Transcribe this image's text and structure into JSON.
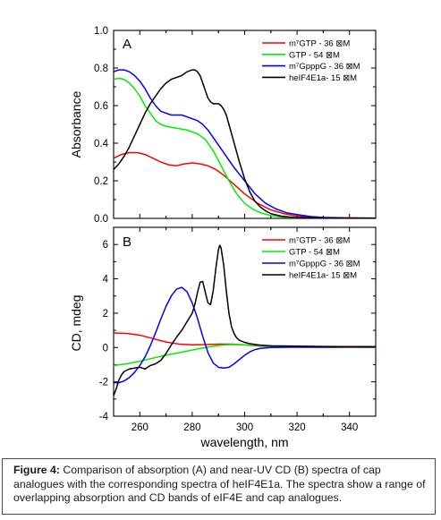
{
  "chart_data": [
    {
      "type": "line",
      "panel_label": "A",
      "ylabel": "Absorbance",
      "xlim": [
        250,
        350
      ],
      "ylim": [
        0.0,
        1.0
      ],
      "yticks": [
        0.0,
        0.2,
        0.4,
        0.6,
        0.8,
        1.0
      ],
      "ytick_labels": [
        "0.0",
        "0.2",
        "0.4",
        "0.6",
        "0.8",
        "1.0"
      ],
      "xticks": [
        260,
        280,
        300,
        320,
        340
      ],
      "legend_position": "top-right",
      "series": [
        {
          "name": "m⁷GTP - 36 ⊠M",
          "color": "#ff0000",
          "x": [
            250,
            253,
            256,
            259,
            262,
            265,
            268,
            271,
            274,
            277,
            280,
            283,
            286,
            289,
            292,
            296,
            300,
            305,
            310,
            315,
            320,
            330,
            340,
            350
          ],
          "y": [
            0.32,
            0.34,
            0.35,
            0.35,
            0.34,
            0.32,
            0.3,
            0.285,
            0.28,
            0.29,
            0.295,
            0.29,
            0.28,
            0.26,
            0.23,
            0.18,
            0.13,
            0.08,
            0.045,
            0.025,
            0.012,
            0.005,
            0.003,
            0.002
          ]
        },
        {
          "name": "GTP - 54 ⊠M",
          "color": "#00ee00",
          "x": [
            250,
            252,
            254,
            256,
            258,
            260,
            262,
            264,
            266,
            268,
            270,
            274,
            278,
            282,
            285,
            288,
            291,
            294,
            297,
            300,
            303,
            306,
            310,
            315,
            320,
            330,
            340,
            350
          ],
          "y": [
            0.74,
            0.745,
            0.74,
            0.72,
            0.69,
            0.65,
            0.6,
            0.56,
            0.52,
            0.5,
            0.49,
            0.48,
            0.47,
            0.45,
            0.42,
            0.36,
            0.28,
            0.2,
            0.13,
            0.08,
            0.05,
            0.03,
            0.015,
            0.006,
            0.003,
            0.001,
            0.001,
            0.0
          ]
        },
        {
          "name": "m⁷GpppG - 36 ⊠M",
          "color": "#0000ff",
          "x": [
            250,
            252,
            254,
            256,
            258,
            260,
            262,
            264,
            266,
            268,
            270,
            272,
            274,
            276,
            278,
            280,
            282,
            284,
            286,
            288,
            290,
            293,
            296,
            300,
            304,
            308,
            312,
            316,
            320,
            325,
            330,
            340,
            350
          ],
          "y": [
            0.78,
            0.79,
            0.79,
            0.78,
            0.76,
            0.73,
            0.69,
            0.64,
            0.6,
            0.57,
            0.56,
            0.55,
            0.55,
            0.55,
            0.54,
            0.53,
            0.52,
            0.5,
            0.47,
            0.43,
            0.39,
            0.33,
            0.27,
            0.2,
            0.13,
            0.08,
            0.05,
            0.03,
            0.02,
            0.01,
            0.005,
            0.002,
            0.001
          ]
        },
        {
          "name": "heIF4E1a- 15 ⊠M",
          "color": "#000000",
          "x": [
            250,
            252,
            254,
            256,
            258,
            260,
            262,
            264,
            266,
            268,
            270,
            272,
            274,
            276,
            278,
            280,
            281,
            282,
            283,
            284,
            285,
            286,
            287,
            288,
            289,
            290,
            291,
            292,
            293,
            294,
            296,
            298,
            300,
            302,
            304,
            306,
            308,
            310,
            314,
            318,
            320,
            330,
            340,
            350
          ],
          "y": [
            0.26,
            0.29,
            0.33,
            0.38,
            0.44,
            0.5,
            0.56,
            0.61,
            0.65,
            0.69,
            0.72,
            0.74,
            0.75,
            0.76,
            0.78,
            0.79,
            0.79,
            0.78,
            0.76,
            0.72,
            0.68,
            0.64,
            0.62,
            0.61,
            0.61,
            0.61,
            0.6,
            0.58,
            0.55,
            0.5,
            0.4,
            0.3,
            0.21,
            0.14,
            0.09,
            0.06,
            0.04,
            0.025,
            0.012,
            0.006,
            0.004,
            0.002,
            0.001,
            0.0
          ]
        }
      ]
    },
    {
      "type": "line",
      "panel_label": "B",
      "ylabel": "CD, mdeg",
      "xlabel": "wavelength, nm",
      "xlim": [
        250,
        350
      ],
      "ylim": [
        -4,
        7
      ],
      "yticks": [
        -4,
        -2,
        0,
        2,
        4,
        6
      ],
      "ytick_labels": [
        "-4",
        "-2",
        "0",
        "2",
        "4",
        "6"
      ],
      "xticks": [
        260,
        280,
        300,
        320,
        340
      ],
      "xtick_labels": [
        "260",
        "280",
        "300",
        "320",
        "340"
      ],
      "legend_position": "top-right",
      "series": [
        {
          "name": "m⁷GTP - 36 ⊠M",
          "color": "#ff0000",
          "x": [
            250,
            255,
            260,
            265,
            270,
            275,
            280,
            285,
            290,
            295,
            300,
            305,
            310,
            320,
            330,
            340,
            350
          ],
          "y": [
            0.85,
            0.82,
            0.72,
            0.52,
            0.32,
            0.2,
            0.16,
            0.17,
            0.2,
            0.2,
            0.15,
            0.09,
            0.05,
            0.02,
            0.01,
            0.01,
            0.0
          ]
        },
        {
          "name": "GTP - 54 ⊠M",
          "color": "#00ee00",
          "x": [
            250,
            255,
            260,
            265,
            270,
            275,
            280,
            285,
            290,
            295,
            300,
            305,
            310,
            320,
            330,
            340,
            350
          ],
          "y": [
            -1.05,
            -0.95,
            -0.8,
            -0.62,
            -0.45,
            -0.3,
            -0.15,
            0.0,
            0.12,
            0.18,
            0.16,
            0.11,
            0.07,
            0.04,
            0.03,
            0.03,
            0.03
          ]
        },
        {
          "name": "m⁷GpppG - 36 ⊠M",
          "color": "#0000ff",
          "x": [
            250,
            252,
            254,
            256,
            258,
            260,
            262,
            264,
            266,
            268,
            270,
            272,
            274,
            276,
            278,
            280,
            282,
            284,
            286,
            288,
            290,
            292,
            294,
            296,
            298,
            300,
            302,
            304,
            306,
            310,
            320,
            330,
            340,
            350
          ],
          "y": [
            -2.05,
            -2.05,
            -1.95,
            -1.75,
            -1.45,
            -1.05,
            -0.55,
            0.1,
            0.85,
            1.65,
            2.4,
            3.0,
            3.4,
            3.5,
            3.25,
            2.6,
            1.7,
            0.65,
            -0.3,
            -0.9,
            -1.15,
            -1.2,
            -1.15,
            -0.95,
            -0.7,
            -0.45,
            -0.25,
            -0.12,
            -0.05,
            0.0,
            0.02,
            0.03,
            0.04,
            0.04
          ]
        },
        {
          "name": "heIF4E1a- 15 ⊠M",
          "color": "#000000",
          "x": [
            250,
            251,
            252,
            253,
            254,
            256,
            258,
            260,
            262,
            264,
            266,
            268,
            270,
            272,
            274,
            276,
            278,
            280,
            281,
            282,
            283,
            284,
            285,
            286,
            287,
            288,
            289,
            290,
            290.5,
            291,
            292,
            293,
            294,
            295,
            296,
            297,
            298,
            300,
            302,
            304,
            306,
            310,
            320,
            330,
            340,
            350
          ],
          "y": [
            -2.8,
            -2.4,
            -1.9,
            -1.6,
            -1.4,
            -1.25,
            -1.2,
            -1.15,
            -1.25,
            -1.05,
            -0.95,
            -0.75,
            -0.35,
            0.15,
            0.6,
            1.0,
            1.5,
            2.0,
            2.5,
            3.2,
            3.8,
            3.85,
            3.2,
            2.6,
            2.5,
            3.3,
            4.6,
            5.7,
            5.95,
            5.8,
            4.8,
            3.3,
            2.0,
            1.2,
            0.8,
            0.55,
            0.42,
            0.3,
            0.22,
            0.18,
            0.14,
            0.1,
            0.08,
            0.06,
            0.05,
            0.05
          ]
        }
      ]
    }
  ],
  "caption": {
    "label": "Figure 4:",
    "text": "Comparison of absorption (A) and near-UV CD (B) spectra of cap analogues with the corresponding spectra of heIF4E1a. The spectra show a range of overlapping absorption and CD bands of eIF4E and cap analogues."
  }
}
